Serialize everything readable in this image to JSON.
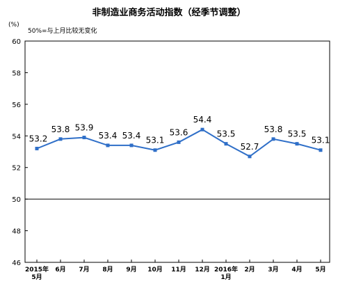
{
  "chart_data": {
    "type": "line",
    "title": "非制造业商务活动指数（经季节调整）",
    "unit": "(%)",
    "note": "50%=与上月比较无变化",
    "categories": [
      [
        "2015年",
        "5月"
      ],
      [
        "6月"
      ],
      [
        "7月"
      ],
      [
        "8月"
      ],
      [
        "9月"
      ],
      [
        "10月"
      ],
      [
        "11月"
      ],
      [
        "12月"
      ],
      [
        "2016年",
        "1月"
      ],
      [
        "2月"
      ],
      [
        "3月"
      ],
      [
        "4月"
      ],
      [
        "5月"
      ]
    ],
    "series": [
      {
        "values": [
          53.2,
          53.8,
          53.9,
          53.4,
          53.4,
          53.1,
          53.6,
          54.4,
          53.5,
          52.7,
          53.8,
          53.5,
          53.1
        ]
      }
    ],
    "data_labels": [
      "53.2",
      "53.8",
      "53.9",
      "53.4",
      "53.4",
      "53.1",
      "53.6",
      "54.4",
      "53.5",
      "52.7",
      "53.8",
      "53.5",
      "53.1"
    ],
    "yticks": [
      "60",
      "58",
      "56",
      "54",
      "52",
      "50",
      "48",
      "46"
    ],
    "ylim": [
      46,
      60
    ],
    "reference_line": 50,
    "grid": false,
    "line_color": "#2f6fc8",
    "axis_color": "#000000"
  }
}
